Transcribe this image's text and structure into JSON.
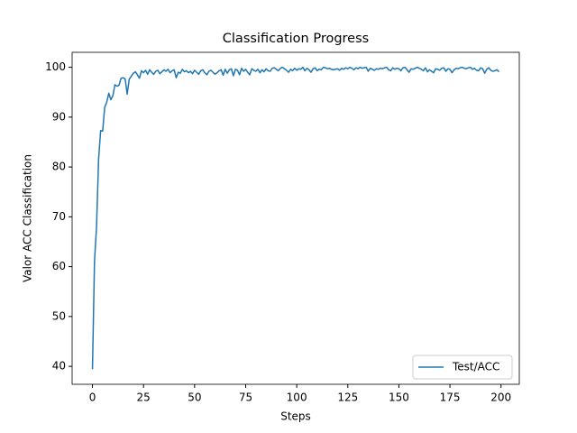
{
  "chart_data": {
    "type": "line",
    "title": "Classification Progress",
    "x_label": "Steps",
    "y_label": "Valor ACC Classification",
    "x": [
      0,
      1,
      2,
      3,
      4,
      5,
      6,
      7,
      8,
      9,
      10,
      11,
      12,
      13,
      14,
      15,
      16,
      17,
      18,
      19,
      20,
      21,
      22,
      23,
      24,
      25,
      26,
      27,
      28,
      29,
      30,
      31,
      32,
      33,
      34,
      35,
      36,
      37,
      38,
      39,
      40,
      41,
      42,
      43,
      44,
      45,
      46,
      47,
      48,
      49,
      50,
      51,
      52,
      53,
      54,
      55,
      56,
      57,
      58,
      59,
      60,
      61,
      62,
      63,
      64,
      65,
      66,
      67,
      68,
      69,
      70,
      71,
      72,
      73,
      74,
      75,
      76,
      77,
      78,
      79,
      80,
      81,
      82,
      83,
      84,
      85,
      86,
      87,
      88,
      89,
      90,
      91,
      92,
      93,
      94,
      95,
      96,
      97,
      98,
      99,
      100,
      101,
      102,
      103,
      104,
      105,
      106,
      107,
      108,
      109,
      110,
      111,
      112,
      113,
      114,
      115,
      116,
      117,
      118,
      119,
      120,
      121,
      122,
      123,
      124,
      125,
      126,
      127,
      128,
      129,
      130,
      131,
      132,
      133,
      134,
      135,
      136,
      137,
      138,
      139,
      140,
      141,
      142,
      143,
      144,
      145,
      146,
      147,
      148,
      149,
      150,
      151,
      152,
      153,
      154,
      155,
      156,
      157,
      158,
      159,
      160,
      161,
      162,
      163,
      164,
      165,
      166,
      167,
      168,
      169,
      170,
      171,
      172,
      173,
      174,
      175,
      176,
      177,
      178,
      179,
      180,
      181,
      182,
      183,
      184,
      185,
      186,
      187,
      188,
      189,
      190,
      191,
      192,
      193,
      194,
      195,
      196,
      197,
      198,
      199
    ],
    "series": [
      {
        "name": "Test/ACC",
        "color": "#1f77b4",
        "values": [
          39.4,
          61.0,
          68.0,
          81.5,
          87.3,
          87.2,
          92.0,
          93.0,
          94.8,
          93.5,
          94.3,
          96.5,
          96.2,
          96.4,
          97.8,
          97.9,
          97.7,
          94.6,
          97.6,
          98.2,
          98.8,
          99.1,
          98.5,
          97.8,
          99.3,
          98.9,
          99.4,
          98.6,
          99.5,
          99.0,
          98.6,
          99.2,
          99.4,
          98.7,
          99.1,
          99.5,
          99.2,
          99.6,
          98.9,
          99.3,
          99.5,
          97.9,
          99.0,
          98.8,
          99.6,
          99.1,
          99.3,
          98.9,
          99.2,
          98.7,
          99.4,
          99.0,
          98.6,
          99.3,
          99.5,
          98.9,
          98.5,
          99.2,
          99.4,
          99.0,
          98.6,
          98.9,
          99.3,
          99.5,
          98.4,
          99.6,
          98.8,
          99.5,
          99.7,
          98.3,
          99.6,
          99.4,
          98.5,
          99.8,
          99.2,
          99.6,
          99.0,
          98.5,
          99.7,
          99.4,
          99.2,
          99.6,
          98.9,
          99.5,
          99.1,
          99.7,
          99.3,
          99.2,
          99.8,
          99.9,
          99.6,
          99.3,
          99.8,
          100.0,
          99.7,
          99.4,
          99.0,
          99.6,
          99.3,
          99.8,
          99.4,
          99.7,
          99.6,
          100.0,
          99.3,
          99.8,
          99.5,
          99.0,
          99.7,
          99.9,
          99.3,
          99.6,
          99.5,
          100.0,
          99.9,
          99.7,
          99.8,
          99.6,
          99.5,
          99.6,
          99.7,
          99.4,
          99.8,
          99.6,
          99.9,
          99.7,
          100.0,
          99.8,
          99.5,
          99.9,
          99.7,
          100.0,
          99.8,
          99.9,
          100.0,
          99.2,
          99.8,
          99.6,
          99.4,
          99.7,
          99.6,
          99.8,
          99.7,
          99.9,
          100.0,
          99.5,
          99.3,
          99.9,
          99.6,
          99.8,
          99.7,
          99.3,
          99.9,
          100.0,
          99.5,
          99.0,
          99.7,
          99.6,
          99.8,
          100.0,
          99.8,
          99.6,
          99.3,
          99.9,
          99.1,
          99.5,
          99.2,
          98.9,
          99.7,
          99.6,
          99.4,
          99.8,
          99.9,
          99.2,
          99.7,
          99.6,
          98.9,
          99.5,
          99.8,
          99.7,
          99.9,
          100.0,
          99.8,
          99.7,
          99.9,
          100.0,
          99.6,
          99.8,
          99.4,
          99.3,
          99.9,
          99.7,
          98.8,
          99.6,
          99.9,
          99.4,
          99.2,
          99.3,
          99.5,
          99.1
        ]
      }
    ],
    "xlim": [
      -9.95,
      208.95
    ],
    "xticks": [
      0,
      25,
      50,
      75,
      100,
      125,
      150,
      175,
      200
    ],
    "ylim": [
      36.4,
      103.0
    ],
    "yticks": [
      40,
      50,
      60,
      70,
      80,
      90,
      100
    ],
    "legend": "lower right",
    "grid": false
  }
}
